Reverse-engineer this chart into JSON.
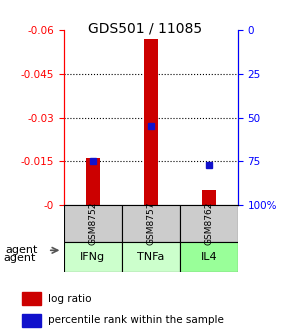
{
  "title": "GDS501 / 11085",
  "samples": [
    "GSM8752",
    "GSM8757",
    "GSM8762"
  ],
  "agents": [
    "IFNg",
    "TNFa",
    "IL4"
  ],
  "log_ratios": [
    -0.016,
    -0.057,
    -0.005
  ],
  "percentile_ranks": [
    75,
    55,
    77
  ],
  "bar_color": "#cc0000",
  "dot_color": "#1111cc",
  "ylim_left": [
    0.0,
    -0.06
  ],
  "yticks_left": [
    0.0,
    -0.015,
    -0.03,
    -0.045,
    -0.06
  ],
  "ytick_labels_left": [
    "-0",
    "-0.015",
    "-0.03",
    "-0.045",
    "-0.06"
  ],
  "ytick_labels_right": [
    "100%",
    "75",
    "50",
    "25",
    "0"
  ],
  "grid_values": [
    -0.015,
    -0.03,
    -0.045
  ],
  "sample_box_color": "#cccccc",
  "agent_colors": [
    "#ccffcc",
    "#ccffcc",
    "#99ff99"
  ],
  "bar_width": 0.25,
  "figsize": [
    2.9,
    3.36
  ],
  "dpi": 100
}
